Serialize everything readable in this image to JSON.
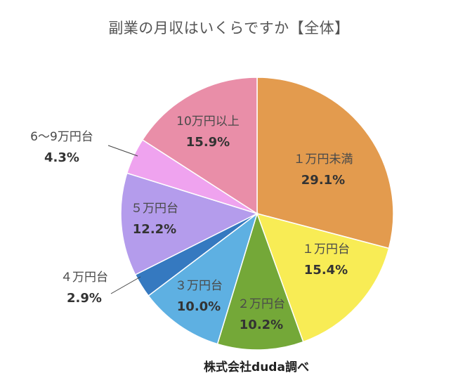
{
  "chart_data": {
    "type": "pie",
    "title": "副業の月収はいくらですか【全体】",
    "source": "株式会社duda調べ",
    "slices": [
      {
        "label": "１万円未満",
        "value": 29.1,
        "value_label": "29.1%",
        "color": "#e39b4e"
      },
      {
        "label": "１万円台",
        "value": 15.4,
        "value_label": "15.4%",
        "color": "#f8ec55"
      },
      {
        "label": "２万円台",
        "value": 10.2,
        "value_label": "10.2%",
        "color": "#74a838"
      },
      {
        "label": "３万円台",
        "value": 10.0,
        "value_label": "10.0%",
        "color": "#5eb0e2"
      },
      {
        "label": "４万円台",
        "value": 2.9,
        "value_label": "2.9%",
        "color": "#3579c0"
      },
      {
        "label": "５万円台",
        "value": 12.2,
        "value_label": "12.2%",
        "color": "#b49cec"
      },
      {
        "label": "6～9万円台",
        "value": 4.3,
        "value_label": "4.3%",
        "color": "#efa3ef"
      },
      {
        "label": "10万円以上",
        "value": 15.9,
        "value_label": "15.9%",
        "color": "#e98ea8"
      }
    ]
  }
}
